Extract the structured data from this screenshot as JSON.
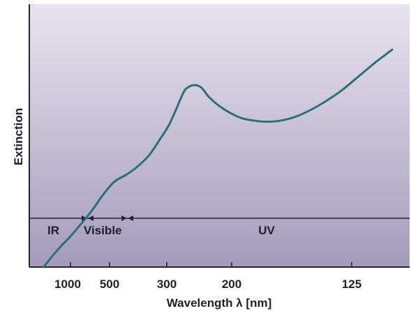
{
  "chart_data": {
    "type": "line",
    "title": "",
    "xlabel": "Wavelength λ [nm]",
    "ylabel": "Extinction",
    "x_ticks": [
      "1000",
      "500",
      "300",
      "200",
      "125"
    ],
    "x_tick_values_nm": [
      1000,
      500,
      300,
      200,
      125
    ],
    "x_scale": "reciprocal",
    "y_ticks": [],
    "grid": false,
    "regions": [
      {
        "label": "IR",
        "from_nm": null,
        "to_nm": 730
      },
      {
        "label": "Visible",
        "from_nm": 730,
        "to_nm": 390
      },
      {
        "label": "UV",
        "from_nm": 390,
        "to_nm": null
      }
    ],
    "series": [
      {
        "name": "",
        "color": "#2f6d78",
        "points": [
          [
            3000,
            0.0
          ],
          [
            1500,
            0.07
          ],
          [
            1000,
            0.13
          ],
          [
            800,
            0.18
          ],
          [
            650,
            0.24
          ],
          [
            560,
            0.3
          ],
          [
            480,
            0.36
          ],
          [
            420,
            0.39
          ],
          [
            380,
            0.42
          ],
          [
            340,
            0.47
          ],
          [
            310,
            0.54
          ],
          [
            290,
            0.6
          ],
          [
            275,
            0.67
          ],
          [
            262,
            0.74
          ],
          [
            255,
            0.76
          ],
          [
            245,
            0.77
          ],
          [
            235,
            0.76
          ],
          [
            225,
            0.72
          ],
          [
            212,
            0.68
          ],
          [
            200,
            0.65
          ],
          [
            190,
            0.63
          ],
          [
            180,
            0.62
          ],
          [
            170,
            0.615
          ],
          [
            160,
            0.62
          ],
          [
            150,
            0.64
          ],
          [
            140,
            0.68
          ],
          [
            130,
            0.74
          ],
          [
            122,
            0.81
          ],
          [
            116,
            0.87
          ],
          [
            111,
            0.92
          ]
        ]
      }
    ],
    "colors": {
      "background_top": "#e7e4ee",
      "background_bottom": "#a49bbc",
      "curve": "#2f6d78",
      "axes": "#252530",
      "text": "#1f1f28"
    }
  }
}
